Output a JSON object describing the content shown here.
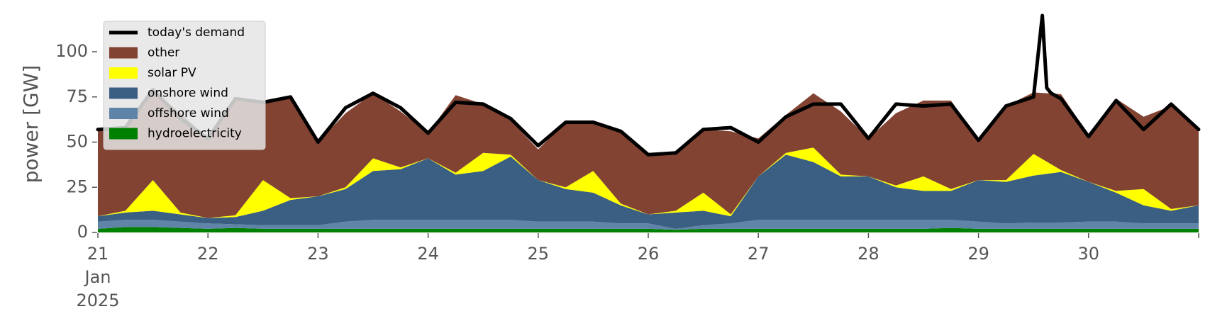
{
  "chart_data": {
    "type": "area",
    "title": "",
    "xlabel": "",
    "ylabel": "power [GW]",
    "ylim": [
      0,
      120
    ],
    "xlim_days": [
      21,
      31
    ],
    "y_ticks": [
      0,
      25,
      50,
      75,
      100
    ],
    "x_ticks": [
      {
        "day": 21,
        "label": "21",
        "sub1": "Jan",
        "sub2": "2025"
      },
      {
        "day": 22,
        "label": "22"
      },
      {
        "day": 23,
        "label": "23"
      },
      {
        "day": 24,
        "label": "24"
      },
      {
        "day": 25,
        "label": "25"
      },
      {
        "day": 26,
        "label": "26"
      },
      {
        "day": 27,
        "label": "27"
      },
      {
        "day": 28,
        "label": "28"
      },
      {
        "day": 29,
        "label": "29"
      },
      {
        "day": 30,
        "label": "30"
      },
      {
        "day": 31,
        "label": ""
      }
    ],
    "grid": false,
    "legend_position": "top-left",
    "x": [
      21.0,
      21.25,
      21.5,
      21.75,
      22.0,
      22.25,
      22.5,
      22.75,
      23.0,
      23.25,
      23.5,
      23.75,
      24.0,
      24.25,
      24.5,
      24.75,
      25.0,
      25.25,
      25.5,
      25.75,
      26.0,
      26.25,
      26.5,
      26.75,
      27.0,
      27.25,
      27.5,
      27.75,
      28.0,
      28.25,
      28.5,
      28.75,
      29.0,
      29.25,
      29.5,
      29.75,
      30.0,
      30.25,
      30.5,
      30.75,
      31.0
    ],
    "series": [
      {
        "name": "hydroelectricity",
        "color": "#008000",
        "values": [
          2,
          3,
          3,
          2.5,
          2,
          2.5,
          2,
          2,
          2,
          2,
          2,
          2,
          2,
          2,
          2,
          2,
          2,
          2,
          2,
          2,
          2,
          1.5,
          2,
          2,
          2,
          2,
          2,
          2,
          2,
          2,
          2,
          2.5,
          2,
          2,
          2,
          2,
          2,
          2,
          2,
          2,
          2
        ]
      },
      {
        "name": "offshore wind",
        "color": "#5f84a8",
        "values": [
          4,
          4,
          4,
          3.5,
          3,
          2,
          2,
          2,
          2,
          4,
          5,
          5,
          5,
          5,
          5,
          5,
          4,
          4,
          4,
          3,
          3,
          0.5,
          2,
          3,
          5,
          5,
          5,
          5,
          5,
          5,
          5,
          4.5,
          4,
          3,
          3.5,
          3.5,
          4,
          4,
          3,
          3,
          3
        ]
      },
      {
        "name": "onshore wind",
        "color": "#3a5f82",
        "values": [
          3,
          4,
          5,
          4,
          3,
          4,
          8,
          14,
          16,
          18,
          27,
          28,
          34,
          25,
          27,
          35,
          23,
          18,
          16,
          10,
          5,
          9,
          8,
          4,
          24,
          36,
          32,
          24,
          24,
          18,
          16,
          16,
          23,
          23,
          26,
          28,
          22,
          16,
          10,
          7,
          10
        ]
      },
      {
        "name": "solar PV",
        "color": "#ffff00",
        "values": [
          0,
          1,
          17,
          1,
          0,
          1,
          17,
          1,
          0,
          1,
          7,
          1,
          0,
          1,
          10,
          1,
          0,
          1,
          12,
          1,
          0,
          1,
          10,
          1,
          0,
          1,
          8,
          1,
          0,
          1,
          8,
          1,
          0,
          1,
          12,
          1,
          0,
          1,
          9,
          1,
          0
        ]
      },
      {
        "name": "other",
        "color": "#834333",
        "values": [
          48,
          46,
          50,
          55,
          44,
          64,
          43,
          56,
          30,
          41,
          36,
          31,
          14,
          43,
          27,
          19,
          17,
          36,
          27,
          40,
          34,
          32,
          35,
          46,
          21,
          21,
          30,
          35,
          21,
          40,
          42,
          49,
          22,
          41,
          34,
          42,
          26,
          51,
          40,
          57,
          43
        ]
      }
    ],
    "demand": {
      "name": "today's demand",
      "color": "#000000",
      "x": [
        21.0,
        21.25,
        21.5,
        21.75,
        22.0,
        22.25,
        22.5,
        22.75,
        23.0,
        23.25,
        23.5,
        23.75,
        24.0,
        24.25,
        24.5,
        24.75,
        25.0,
        25.25,
        25.5,
        25.75,
        26.0,
        26.25,
        26.5,
        26.75,
        27.0,
        27.25,
        27.5,
        27.75,
        28.0,
        28.25,
        28.5,
        28.75,
        29.0,
        29.25,
        29.5,
        29.58,
        29.62,
        29.66,
        29.75,
        30.0,
        30.25,
        30.5,
        30.75,
        31.0
      ],
      "values": [
        57,
        58,
        79,
        63,
        52,
        74,
        72,
        75,
        50,
        69,
        77,
        69,
        55,
        72,
        71,
        63,
        48,
        61,
        61,
        56,
        43,
        44,
        57,
        58,
        50,
        64,
        71,
        71,
        52,
        71,
        70,
        71,
        51,
        70,
        75,
        120,
        80,
        77,
        74,
        53,
        73,
        57,
        71,
        57
      ]
    }
  }
}
